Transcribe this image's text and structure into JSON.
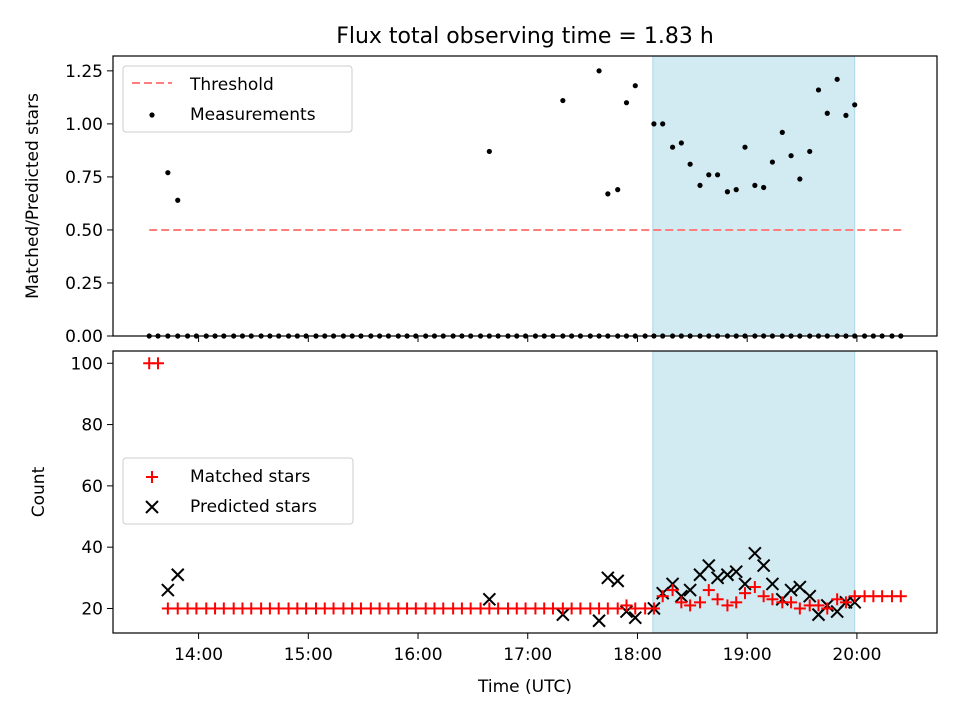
{
  "title": "Flux total observing time = 1.83 h",
  "colors": {
    "threshold": "#ff7f7f",
    "measurement": "#000000",
    "matched": "#ff0000",
    "predicted": "#000000",
    "shade": "#add8e6"
  },
  "chart_data": [
    {
      "type": "scatter",
      "ylabel": "Matched/Predicted stars",
      "xlim": [
        13.22,
        20.73
      ],
      "ylim": [
        0,
        1.32
      ],
      "yticks": [
        0,
        0.25,
        0.5,
        0.75,
        1.0,
        1.25
      ],
      "ytick_labels": [
        "0.00",
        "0.25",
        "0.50",
        "0.75",
        "1.00",
        "1.25"
      ],
      "shaded_region": [
        18.14,
        19.98
      ],
      "legend": {
        "position": "upper-left",
        "entries": [
          {
            "label": "Threshold",
            "marker": "dashed-line"
          },
          {
            "label": "Measurements",
            "marker": "dot"
          }
        ]
      },
      "threshold": {
        "name": "Threshold",
        "y": 0.5,
        "x_start": 13.55,
        "x_end": 20.42
      },
      "measurements_zero": [
        13.55,
        13.63,
        13.72,
        13.81,
        13.9,
        13.98,
        14.07,
        14.15,
        14.23,
        14.32,
        14.4,
        14.48,
        14.57,
        14.65,
        14.73,
        14.82,
        14.9,
        14.98,
        15.07,
        15.15,
        15.23,
        15.32,
        15.4,
        15.48,
        15.57,
        15.65,
        15.73,
        15.82,
        15.9,
        15.98,
        16.07,
        16.15,
        16.23,
        16.32,
        16.4,
        16.48,
        16.57,
        16.65,
        16.73,
        16.82,
        16.9,
        16.98,
        17.07,
        17.15,
        17.23,
        17.32,
        17.4,
        17.48,
        17.57,
        17.65,
        17.73,
        17.82,
        17.9,
        17.98,
        18.07,
        18.15,
        18.23,
        18.32,
        18.4,
        18.48,
        18.57,
        18.65,
        18.73,
        18.82,
        18.9,
        18.98,
        19.07,
        19.15,
        19.23,
        19.32,
        19.4,
        19.48,
        19.57,
        19.65,
        19.73,
        19.82,
        19.9,
        19.98,
        20.07,
        20.15,
        20.23,
        20.32,
        20.4
      ],
      "measurements_nonzero": {
        "x": [
          13.72,
          13.81,
          16.65,
          17.32,
          17.65,
          17.73,
          17.82,
          17.9,
          17.98,
          18.15,
          18.23,
          18.32,
          18.4,
          18.48,
          18.57,
          18.65,
          18.73,
          18.82,
          18.9,
          18.98,
          19.07,
          19.15,
          19.23,
          19.32,
          19.4,
          19.48,
          19.57,
          19.65,
          19.73,
          19.82,
          19.9,
          19.98
        ],
        "y": [
          0.77,
          0.64,
          0.87,
          1.11,
          1.25,
          0.67,
          0.69,
          1.1,
          1.18,
          1.0,
          1.0,
          0.89,
          0.91,
          0.81,
          0.71,
          0.76,
          0.76,
          0.68,
          0.69,
          0.89,
          0.71,
          0.7,
          0.82,
          0.96,
          0.85,
          0.74,
          0.87,
          1.16,
          1.05,
          1.21,
          1.04,
          1.09
        ]
      }
    },
    {
      "type": "scatter",
      "xlabel": "Time (UTC)",
      "ylabel": "Count",
      "xlim": [
        13.22,
        20.73
      ],
      "ylim": [
        12,
        104
      ],
      "yticks": [
        20,
        40,
        60,
        80,
        100
      ],
      "ytick_labels": [
        "20",
        "40",
        "60",
        "80",
        "100"
      ],
      "xticks": [
        14,
        15,
        16,
        17,
        18,
        19,
        20
      ],
      "xtick_labels": [
        "14:00",
        "15:00",
        "16:00",
        "17:00",
        "18:00",
        "19:00",
        "20:00"
      ],
      "shaded_region": [
        18.14,
        19.98
      ],
      "legend": {
        "position": "center-left",
        "entries": [
          {
            "label": "Matched stars",
            "marker": "plus"
          },
          {
            "label": "Predicted stars",
            "marker": "x"
          }
        ]
      },
      "series": [
        {
          "name": "Matched stars",
          "x": [
            13.55,
            13.63,
            13.72,
            13.81,
            13.9,
            13.98,
            14.07,
            14.15,
            14.23,
            14.32,
            14.4,
            14.48,
            14.57,
            14.65,
            14.73,
            14.82,
            14.9,
            14.98,
            15.07,
            15.15,
            15.23,
            15.32,
            15.4,
            15.48,
            15.57,
            15.65,
            15.73,
            15.82,
            15.9,
            15.98,
            16.07,
            16.15,
            16.23,
            16.32,
            16.4,
            16.48,
            16.57,
            16.65,
            16.73,
            16.82,
            16.9,
            16.98,
            17.07,
            17.15,
            17.23,
            17.32,
            17.4,
            17.48,
            17.57,
            17.65,
            17.73,
            17.82,
            17.9,
            17.98,
            18.07,
            18.15,
            18.23,
            18.32,
            18.4,
            18.48,
            18.57,
            18.65,
            18.73,
            18.82,
            18.9,
            18.98,
            19.07,
            19.15,
            19.23,
            19.32,
            19.4,
            19.48,
            19.57,
            19.65,
            19.73,
            19.82,
            19.9,
            19.98,
            20.07,
            20.15,
            20.23,
            20.32,
            20.4
          ],
          "y": [
            100,
            100,
            20,
            20,
            20,
            20,
            20,
            20,
            20,
            20,
            20,
            20,
            20,
            20,
            20,
            20,
            20,
            20,
            20,
            20,
            20,
            20,
            20,
            20,
            20,
            20,
            20,
            20,
            20,
            20,
            20,
            20,
            20,
            20,
            20,
            20,
            20,
            20,
            20,
            20,
            20,
            20,
            20,
            20,
            20,
            20,
            20,
            20,
            20,
            20,
            20,
            20,
            21,
            20,
            20,
            20,
            24,
            26,
            22,
            21,
            22,
            26,
            23,
            21,
            22,
            25,
            27,
            24,
            23,
            22,
            22,
            20,
            21,
            21,
            20,
            23,
            22,
            24,
            24,
            24,
            24,
            24,
            24
          ]
        },
        {
          "name": "Predicted stars",
          "x": [
            13.72,
            13.81,
            16.65,
            17.32,
            17.65,
            17.73,
            17.82,
            17.9,
            17.98,
            18.15,
            18.23,
            18.32,
            18.4,
            18.48,
            18.57,
            18.65,
            18.73,
            18.82,
            18.9,
            18.98,
            19.07,
            19.15,
            19.23,
            19.32,
            19.4,
            19.48,
            19.57,
            19.65,
            19.73,
            19.82,
            19.9,
            19.98
          ],
          "y": [
            26,
            31,
            23,
            18,
            16,
            30,
            29,
            19,
            17,
            20,
            25,
            28,
            24,
            26,
            31,
            34,
            30,
            31,
            32,
            28,
            38,
            34,
            28,
            23,
            26,
            27,
            24,
            18,
            21,
            19,
            22,
            22
          ]
        }
      ]
    }
  ]
}
